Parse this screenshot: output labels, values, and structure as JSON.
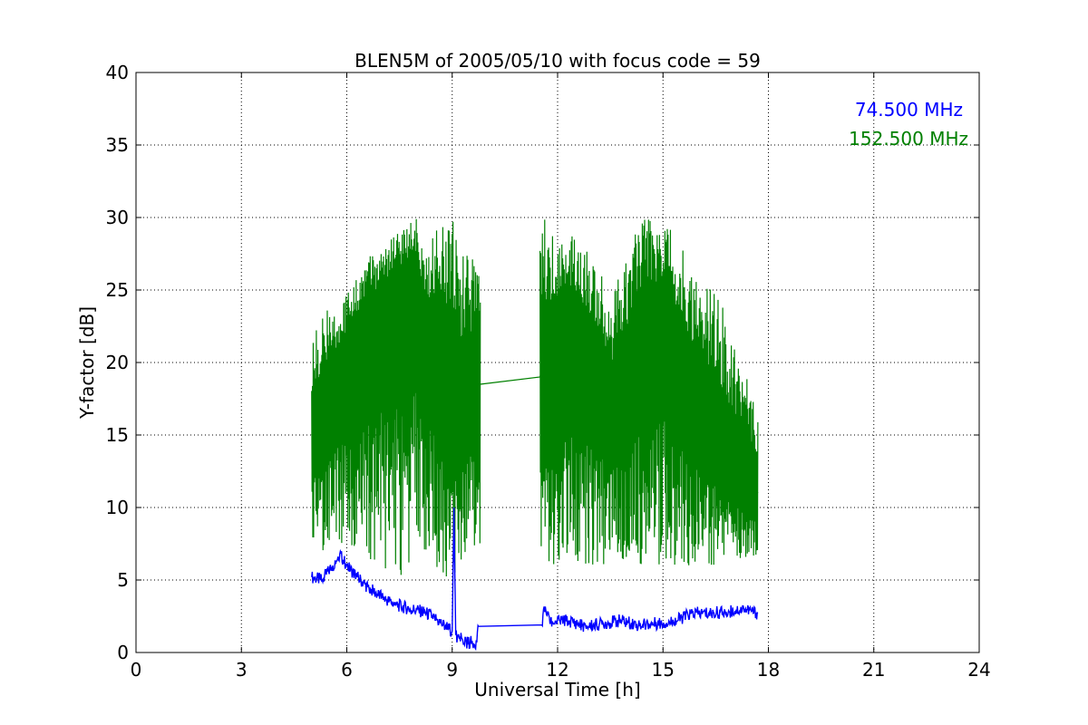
{
  "chart_data": {
    "type": "line",
    "title": "BLEN5M of 2005/05/10 with focus code = 59",
    "xlabel": "Universal Time [h]",
    "ylabel": "Y-factor [dB]",
    "xlim": [
      0,
      24
    ],
    "ylim": [
      0,
      40
    ],
    "xticks": [
      0,
      3,
      6,
      9,
      12,
      15,
      18,
      21,
      24
    ],
    "yticks": [
      0,
      5,
      10,
      15,
      20,
      25,
      30,
      35,
      40
    ],
    "grid": true,
    "legend_position": "top-right",
    "series": [
      {
        "name": "74.500 MHz",
        "color": "#0000ff",
        "x": [
          5.0,
          5.3,
          5.6,
          5.8,
          6.0,
          6.3,
          6.6,
          7.0,
          7.4,
          7.8,
          8.2,
          8.5,
          8.8,
          9.0,
          9.05,
          9.1,
          9.2,
          9.4,
          9.7,
          9.75,
          11.55,
          11.6,
          11.8,
          12.3,
          12.8,
          13.3,
          13.8,
          14.3,
          14.8,
          15.3,
          15.8,
          16.3,
          16.8,
          17.3,
          17.7
        ],
        "y": [
          5.2,
          5.0,
          6.0,
          6.8,
          6.0,
          5.2,
          4.5,
          3.8,
          3.3,
          3.0,
          2.8,
          2.4,
          1.8,
          1.5,
          10.0,
          1.2,
          1.0,
          0.7,
          0.7,
          1.8,
          1.9,
          3.0,
          2.1,
          2.2,
          1.8,
          2.0,
          2.2,
          1.9,
          2.0,
          2.1,
          2.7,
          2.7,
          2.8,
          3.0,
          2.7
        ]
      },
      {
        "name": "152.500 MHz",
        "color": "#008000",
        "x": [
          5.0,
          5.5,
          6.0,
          6.5,
          7.0,
          7.5,
          8.0,
          8.2,
          8.5,
          8.8,
          9.0,
          9.2,
          9.5,
          9.8,
          11.5,
          11.6,
          12.2,
          12.5,
          13.0,
          13.5,
          14.0,
          14.5,
          15.0,
          15.5,
          16.0,
          16.5,
          17.0,
          17.5,
          17.7
        ],
        "y": [
          15,
          18,
          20,
          22,
          24,
          25,
          26,
          21,
          22,
          20,
          17,
          16,
          18,
          18.5,
          19,
          20,
          22,
          21,
          20,
          17,
          19,
          22,
          23,
          20,
          17,
          15,
          13,
          12,
          11
        ],
        "envelope_upper": [
          22,
          24,
          25,
          27,
          28,
          29,
          30,
          27,
          29,
          30,
          30,
          28,
          28,
          26,
          29,
          30,
          28,
          29,
          28,
          24,
          28,
          30,
          30,
          28,
          26,
          25,
          22,
          18,
          16
        ],
        "envelope_lower": [
          7,
          7,
          7,
          6,
          6,
          5,
          6,
          7,
          6,
          5,
          5,
          6,
          7,
          7,
          6,
          6,
          6,
          6,
          6,
          6,
          6,
          6,
          6,
          6,
          6,
          6,
          6,
          6,
          6
        ]
      }
    ]
  }
}
